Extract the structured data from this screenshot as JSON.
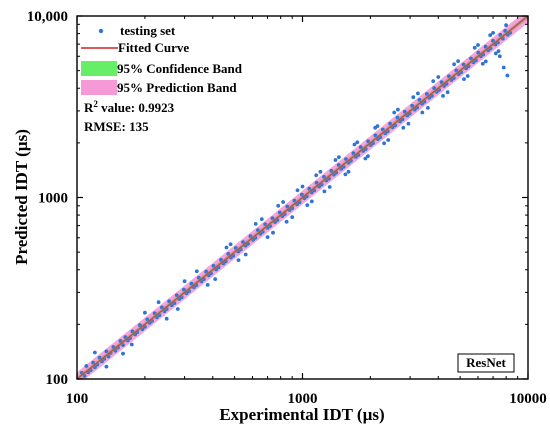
{
  "chart_data": {
    "type": "scatter",
    "xlabel": "Experimental IDT (µs)",
    "ylabel": "Predicted IDT (µs)",
    "xscale": "log",
    "yscale": "log",
    "xlim": [
      100,
      10000
    ],
    "ylim": [
      100,
      10000
    ],
    "xticks": [
      {
        "value": 100,
        "label": "100"
      },
      {
        "value": 1000,
        "label": "1000"
      },
      {
        "value": 10000,
        "label": "10000"
      }
    ],
    "yticks": [
      {
        "value": 100,
        "label": "100"
      },
      {
        "value": 1000,
        "label": "1000"
      },
      {
        "value": 10000,
        "label": "10,000"
      }
    ],
    "grid": false,
    "legend_position": "top-left",
    "legend": [
      {
        "label": "testing set",
        "kind": "marker",
        "color": "#2e74d6"
      },
      {
        "label": "Fitted Curve",
        "kind": "line",
        "color": "#cc2222"
      },
      {
        "label": "95% Confidence Band",
        "kind": "band",
        "color": "#66ee66"
      },
      {
        "label": "95% Prediction Band",
        "kind": "band",
        "color": "#f59ad6"
      }
    ],
    "r2_label": "R",
    "r2_sup": "2",
    "r2_rest": " value: 0.9923",
    "rmse_text": "RMSE: 135",
    "model_label": "ResNet",
    "fit": {
      "x": [
        100,
        10000
      ],
      "y": [
        100,
        10000
      ]
    },
    "prediction_band_factor": 1.09,
    "series": [
      {
        "name": "testing set",
        "color": "#2e74d6",
        "points": [
          [
            105,
            108
          ],
          [
            108,
            104
          ],
          [
            110,
            118
          ],
          [
            112,
            109
          ],
          [
            115,
            112
          ],
          [
            118,
            123
          ],
          [
            120,
            116
          ],
          [
            123,
            120
          ],
          [
            126,
            131
          ],
          [
            129,
            125
          ],
          [
            132,
            129
          ],
          [
            135,
            142
          ],
          [
            138,
            133
          ],
          [
            141,
            139
          ],
          [
            145,
            150
          ],
          [
            148,
            143
          ],
          [
            152,
            149
          ],
          [
            156,
            162
          ],
          [
            160,
            154
          ],
          [
            164,
            170
          ],
          [
            168,
            163
          ],
          [
            172,
            168
          ],
          [
            176,
            183
          ],
          [
            181,
            176
          ],
          [
            185,
            181
          ],
          [
            190,
            198
          ],
          [
            195,
            188
          ],
          [
            200,
            194
          ],
          [
            205,
            213
          ],
          [
            210,
            204
          ],
          [
            215,
            209
          ],
          [
            221,
            230
          ],
          [
            226,
            219
          ],
          [
            232,
            225
          ],
          [
            238,
            248
          ],
          [
            244,
            236
          ],
          [
            250,
            243
          ],
          [
            256,
            268
          ],
          [
            263,
            255
          ],
          [
            270,
            262
          ],
          [
            277,
            289
          ],
          [
            284,
            276
          ],
          [
            291,
            282
          ],
          [
            298,
            311
          ],
          [
            306,
            297
          ],
          [
            314,
            305
          ],
          [
            322,
            335
          ],
          [
            330,
            320
          ],
          [
            338,
            329
          ],
          [
            347,
            361
          ],
          [
            356,
            345
          ],
          [
            365,
            355
          ],
          [
            374,
            390
          ],
          [
            384,
            372
          ],
          [
            393,
            382
          ],
          [
            403,
            420
          ],
          [
            414,
            401
          ],
          [
            424,
            412
          ],
          [
            435,
            453
          ],
          [
            446,
            433
          ],
          [
            457,
            445
          ],
          [
            469,
            489
          ],
          [
            481,
            467
          ],
          [
            493,
            478
          ],
          [
            506,
            527
          ],
          [
            519,
            504
          ],
          [
            532,
            517
          ],
          [
            545,
            568
          ],
          [
            559,
            543
          ],
          [
            573,
            557
          ],
          [
            588,
            613
          ],
          [
            603,
            585
          ],
          [
            618,
            600
          ],
          [
            634,
            661
          ],
          [
            650,
            631
          ],
          [
            666,
            647
          ],
          [
            683,
            712
          ],
          [
            700,
            680
          ],
          [
            718,
            697
          ],
          [
            736,
            768
          ],
          [
            755,
            733
          ],
          [
            774,
            752
          ],
          [
            793,
            827
          ],
          [
            814,
            790
          ],
          [
            834,
            811
          ],
          [
            856,
            892
          ],
          [
            877,
            852
          ],
          [
            900,
            874
          ],
          [
            922,
            962
          ],
          [
            946,
            918
          ],
          [
            970,
            942
          ],
          [
            994,
            1037
          ],
          [
            1020,
            990
          ],
          [
            1045,
            1015
          ],
          [
            1072,
            1118
          ],
          [
            1099,
            1067
          ],
          [
            1127,
            1094
          ],
          [
            1155,
            1205
          ],
          [
            1185,
            1150
          ],
          [
            1215,
            1180
          ],
          [
            1245,
            1299
          ],
          [
            1277,
            1240
          ],
          [
            1309,
            1271
          ],
          [
            1343,
            1401
          ],
          [
            1377,
            1337
          ],
          [
            1411,
            1371
          ],
          [
            1447,
            1510
          ],
          [
            1484,
            1441
          ],
          [
            1522,
            1477
          ],
          [
            1560,
            1628
          ],
          [
            1600,
            1553
          ],
          [
            1640,
            1593
          ],
          [
            1682,
            1755
          ],
          [
            1724,
            1674
          ],
          [
            1768,
            1717
          ],
          [
            1813,
            1892
          ],
          [
            1859,
            1805
          ],
          [
            1906,
            1851
          ],
          [
            1954,
            2039
          ],
          [
            2004,
            1946
          ],
          [
            2054,
            1995
          ],
          [
            2106,
            2198
          ],
          [
            2160,
            2097
          ],
          [
            2214,
            2150
          ],
          [
            2270,
            2369
          ],
          [
            2328,
            2260
          ],
          [
            2387,
            2318
          ],
          [
            2447,
            2554
          ],
          [
            2509,
            2436
          ],
          [
            2573,
            2498
          ],
          [
            2638,
            2753
          ],
          [
            2705,
            2626
          ],
          [
            2773,
            2693
          ],
          [
            2843,
            2967
          ],
          [
            2915,
            2831
          ],
          [
            2989,
            2902
          ],
          [
            3065,
            3199
          ],
          [
            3142,
            3051
          ],
          [
            3222,
            3128
          ],
          [
            3303,
            3448
          ],
          [
            3387,
            3289
          ],
          [
            3473,
            3372
          ],
          [
            3561,
            3717
          ],
          [
            3651,
            3545
          ],
          [
            3743,
            3635
          ],
          [
            3838,
            4006
          ],
          [
            3935,
            3821
          ],
          [
            4035,
            3918
          ],
          [
            4137,
            4318
          ],
          [
            4242,
            4119
          ],
          [
            4349,
            4223
          ],
          [
            4459,
            4655
          ],
          [
            4572,
            4440
          ],
          [
            4688,
            4552
          ],
          [
            4807,
            5018
          ],
          [
            4929,
            4786
          ],
          [
            5053,
            4907
          ],
          [
            5181,
            5408
          ],
          [
            5313,
            5159
          ],
          [
            5447,
            5289
          ],
          [
            5585,
            5830
          ],
          [
            5727,
            5561
          ],
          [
            5872,
            5702
          ],
          [
            6020,
            6284
          ],
          [
            6173,
            5994
          ],
          [
            6329,
            6145
          ],
          [
            6489,
            6774
          ],
          [
            6654,
            6461
          ],
          [
            6822,
            6624
          ],
          [
            6995,
            7302
          ],
          [
            7172,
            6964
          ],
          [
            7354,
            7141
          ],
          [
            7540,
            7870
          ],
          [
            7731,
            7507
          ],
          [
            7926,
            8274
          ],
          [
            8127,
            7892
          ],
          [
            8333,
            8092
          ],
          [
            160,
            138
          ],
          [
            200,
            232
          ],
          [
            250,
            215
          ],
          [
            300,
            346
          ],
          [
            380,
            330
          ],
          [
            460,
            530
          ],
          [
            520,
            452
          ],
          [
            620,
            715
          ],
          [
            700,
            605
          ],
          [
            780,
            900
          ],
          [
            850,
            735
          ],
          [
            950,
            1095
          ],
          [
            1050,
            908
          ],
          [
            1150,
            1325
          ],
          [
            1250,
            1080
          ],
          [
            1400,
            1610
          ],
          [
            1550,
            1340
          ],
          [
            1700,
            1960
          ],
          [
            1900,
            1640
          ],
          [
            2100,
            2420
          ],
          [
            2300,
            1990
          ],
          [
            2550,
            2940
          ],
          [
            2800,
            2420
          ],
          [
            3100,
            3570
          ],
          [
            3400,
            2940
          ],
          [
            3800,
            4380
          ],
          [
            4200,
            3630
          ],
          [
            4700,
            5420
          ],
          [
            5200,
            4490
          ],
          [
            5800,
            6680
          ],
          [
            6300,
            5450
          ],
          [
            6800,
            7850
          ],
          [
            7200,
            6220
          ],
          [
            7500,
            6000
          ],
          [
            7800,
            5200
          ],
          [
            8100,
            4700
          ],
          [
            8000,
            8900
          ],
          [
            120,
            140
          ],
          [
            135,
            117
          ],
          [
            175,
            155
          ],
          [
            230,
            265
          ],
          [
            280,
            243
          ],
          [
            340,
            392
          ],
          [
            410,
            355
          ],
          [
            480,
            552
          ],
          [
            560,
            485
          ],
          [
            660,
            760
          ],
          [
            740,
            640
          ],
          [
            820,
            945
          ],
          [
            900,
            780
          ],
          [
            1000,
            1150
          ],
          [
            1100,
            952
          ],
          [
            1200,
            1385
          ],
          [
            1320,
            1142
          ],
          [
            1450,
            1670
          ],
          [
            1600,
            1385
          ],
          [
            1750,
            2015
          ],
          [
            1950,
            1690
          ],
          [
            2150,
            2475
          ],
          [
            2400,
            2075
          ],
          [
            2650,
            3050
          ],
          [
            2950,
            2550
          ],
          [
            3250,
            3745
          ],
          [
            3600,
            3115
          ],
          [
            4000,
            4610
          ],
          [
            4400,
            3805
          ],
          [
            4900,
            5645
          ],
          [
            5400,
            4670
          ],
          [
            6000,
            6920
          ],
          [
            6500,
            5620
          ],
          [
            7000,
            8070
          ],
          [
            7400,
            6410
          ]
        ]
      }
    ]
  }
}
